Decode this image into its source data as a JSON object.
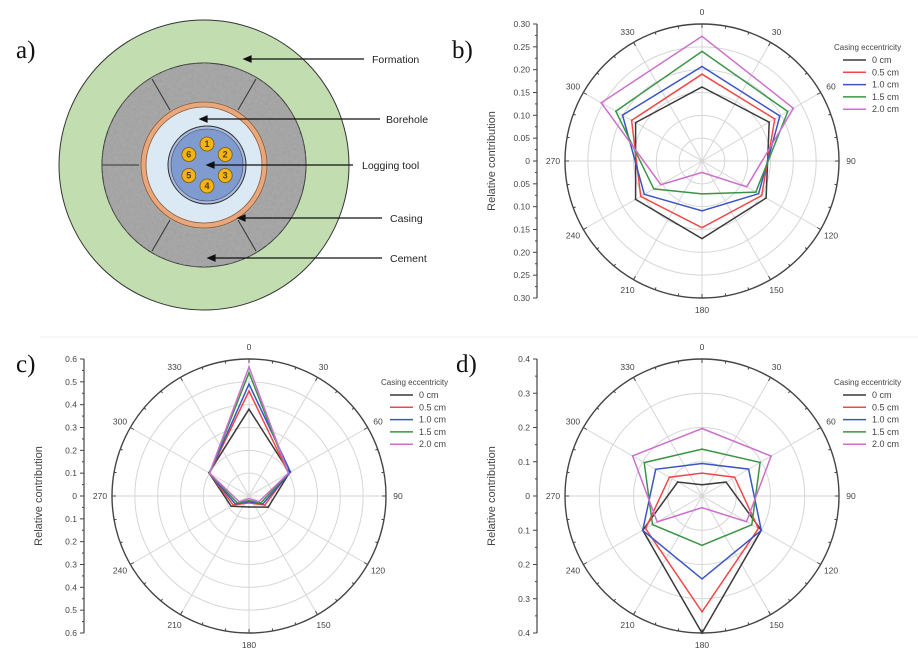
{
  "panel_labels": [
    "a)",
    "b)",
    "c)",
    "d)"
  ],
  "diagram": {
    "labels": {
      "formation": "Formation",
      "borehole": "Borehole",
      "logging_tool": "Logging tool",
      "casing": "Casing",
      "cement": "Cement"
    },
    "detectors": [
      "1",
      "2",
      "3",
      "4",
      "5",
      "6"
    ],
    "colors": {
      "formation": "#c2ddb0",
      "cement": "#9a9a9a",
      "casing": "#e9a77c",
      "borehole": "#dbe9f5",
      "tool": "#7f9bd0",
      "detector": "#f2b418"
    }
  },
  "chart_data": [
    {
      "type": "radar",
      "panel": "b)",
      "title": "",
      "ylabel": "Relative contribution",
      "rlim": [
        0,
        0.3
      ],
      "radial_ticks": [
        "0.30",
        "0.25",
        "0.20",
        "0.15",
        "0.10",
        "0.05",
        "0",
        "0.05",
        "0.10",
        "0.15",
        "0.20",
        "0.25",
        "0.30"
      ],
      "angle_ticks": [
        "0",
        "30",
        "60",
        "90",
        "120",
        "150",
        "180",
        "210",
        "240",
        "270",
        "300",
        "330"
      ],
      "grid": true,
      "legend_title": "Casing eccentricity",
      "legend_position": "top-right",
      "angles": [
        0,
        60,
        120,
        180,
        240,
        300
      ],
      "series": [
        {
          "name": "0 cm",
          "color": "#3a3a3a",
          "values": [
            0.162,
            0.17,
            0.162,
            0.17,
            0.168,
            0.168
          ]
        },
        {
          "name": "0.5 cm",
          "color": "#f04848",
          "values": [
            0.19,
            0.184,
            0.151,
            0.146,
            0.155,
            0.178
          ]
        },
        {
          "name": "1.0 cm",
          "color": "#3a55c4",
          "values": [
            0.207,
            0.197,
            0.143,
            0.109,
            0.146,
            0.201
          ]
        },
        {
          "name": "1.5 cm",
          "color": "#3a9446",
          "values": [
            0.24,
            0.217,
            0.136,
            0.072,
            0.122,
            0.218
          ]
        },
        {
          "name": "2.0 cm",
          "color": "#cc6fcc",
          "values": [
            0.273,
            0.231,
            0.113,
            0.025,
            0.104,
            0.255
          ]
        }
      ]
    },
    {
      "type": "radar",
      "panel": "c)",
      "title": "",
      "ylabel": "Relative contribution",
      "rlim": [
        0,
        0.6
      ],
      "radial_ticks": [
        "0.6",
        "0.5",
        "0.4",
        "0.3",
        "0.2",
        "0.1",
        "0",
        "0.1",
        "0.2",
        "0.3",
        "0.4",
        "0.5",
        "0.6"
      ],
      "angle_ticks": [
        "0",
        "30",
        "60",
        "90",
        "120",
        "150",
        "180",
        "210",
        "240",
        "270",
        "300",
        "330"
      ],
      "grid": true,
      "legend_title": "Casing eccentricity",
      "legend_position": "top-right",
      "angles": [
        0,
        60,
        120,
        180,
        240,
        300
      ],
      "series": [
        {
          "name": "0 cm",
          "color": "#3a3a3a",
          "values": [
            0.38,
            0.205,
            0.097,
            0.048,
            0.09,
            0.203
          ]
        },
        {
          "name": "0.5 cm",
          "color": "#f04848",
          "values": [
            0.46,
            0.2,
            0.08,
            0.03,
            0.08,
            0.2
          ]
        },
        {
          "name": "1.0 cm",
          "color": "#3a55c4",
          "values": [
            0.49,
            0.21,
            0.07,
            0.025,
            0.07,
            0.2
          ]
        },
        {
          "name": "1.5 cm",
          "color": "#3a9446",
          "values": [
            0.54,
            0.2,
            0.06,
            0.02,
            0.06,
            0.2
          ]
        },
        {
          "name": "2.0 cm",
          "color": "#cc6fcc",
          "values": [
            0.565,
            0.2,
            0.05,
            0.012,
            0.05,
            0.2
          ]
        }
      ]
    },
    {
      "type": "radar",
      "panel": "d)",
      "title": "",
      "ylabel": "Relative contribution",
      "rlim": [
        0,
        0.4
      ],
      "radial_ticks": [
        "0.4",
        "0.3",
        "0.2",
        "0.1",
        "0",
        "0.1",
        "0.2",
        "0.3",
        "0.4"
      ],
      "angle_ticks": [
        "0",
        "30",
        "60",
        "90",
        "120",
        "150",
        "180",
        "210",
        "240",
        "270",
        "300",
        "330"
      ],
      "grid": true,
      "legend_title": "Casing eccentricity",
      "legend_position": "top-right",
      "angles": [
        0,
        60,
        120,
        180,
        240,
        300
      ],
      "series": [
        {
          "name": "0 cm",
          "color": "#3a3a3a",
          "values": [
            0.033,
            0.081,
            0.2,
            0.4,
            0.2,
            0.082
          ]
        },
        {
          "name": "0.5 cm",
          "color": "#f04848",
          "values": [
            0.067,
            0.11,
            0.19,
            0.338,
            0.19,
            0.11
          ]
        },
        {
          "name": "1.0 cm",
          "color": "#3a55c4",
          "values": [
            0.095,
            0.157,
            0.2,
            0.242,
            0.2,
            0.156
          ]
        },
        {
          "name": "1.5 cm",
          "color": "#3a9446",
          "values": [
            0.137,
            0.196,
            0.168,
            0.144,
            0.167,
            0.195
          ]
        },
        {
          "name": "2.0 cm",
          "color": "#cc6fcc",
          "values": [
            0.197,
            0.233,
            0.15,
            0.034,
            0.151,
            0.234
          ]
        }
      ]
    }
  ]
}
